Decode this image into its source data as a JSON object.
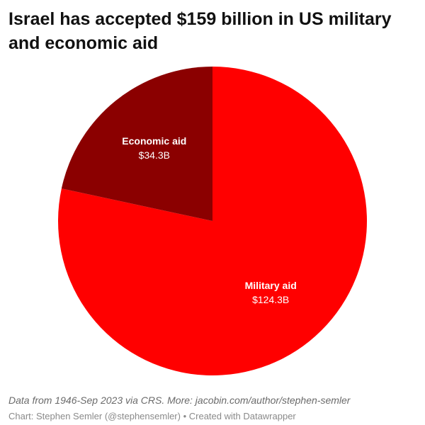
{
  "title": "Israel has accepted $159 billion in US military and economic aid",
  "notes": "Data from 1946-Sep 2023 via CRS. More: jacobin.com/author/stephen-semler",
  "credit": "Chart: Stephen Semler (@stephensemler) • Created with Datawrapper",
  "chart_data": {
    "type": "pie",
    "slices": [
      {
        "label": "Military aid",
        "value_label": "$124.3B",
        "value": 124.3,
        "color": "#ff0000"
      },
      {
        "label": "Economic aid",
        "value_label": "$34.3B",
        "value": 34.3,
        "color": "#8b0000"
      }
    ]
  }
}
